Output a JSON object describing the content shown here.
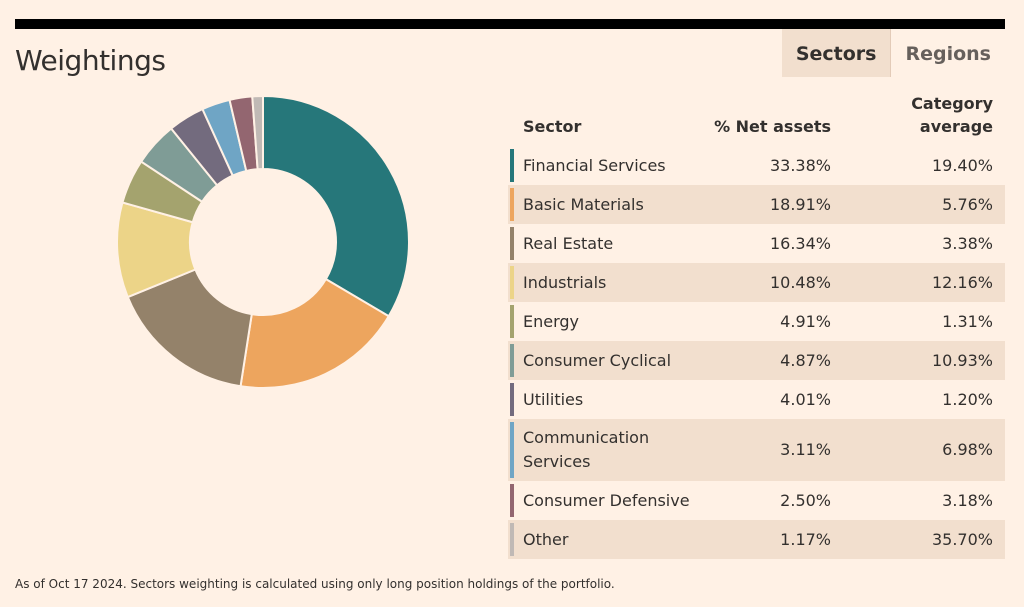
{
  "title": "Weightings",
  "tabs": {
    "sectors": "Sectors",
    "regions": "Regions"
  },
  "table": {
    "headers": {
      "sector": "Sector",
      "net": "% Net assets",
      "cat": "Category average"
    }
  },
  "footnote": "As of Oct 17 2024. Sectors weighting is calculated using only long position holdings of the portfolio.",
  "chart_data": {
    "type": "pie",
    "title": "Weightings",
    "categories": [
      "Financial Services",
      "Basic Materials",
      "Real Estate",
      "Industrials",
      "Energy",
      "Consumer Cyclical",
      "Utilities",
      "Communication Services",
      "Consumer Defensive",
      "Other"
    ],
    "values": [
      33.38,
      18.91,
      16.34,
      10.48,
      4.91,
      4.87,
      4.01,
      3.11,
      2.5,
      1.17
    ],
    "category_average": [
      19.4,
      5.76,
      3.38,
      12.16,
      1.31,
      10.93,
      1.2,
      6.98,
      3.18,
      35.7
    ],
    "net_labels": [
      "33.38%",
      "18.91%",
      "16.34%",
      "10.48%",
      "4.91%",
      "4.87%",
      "4.01%",
      "3.11%",
      "2.50%",
      "1.17%"
    ],
    "cat_labels": [
      "19.40%",
      "5.76%",
      "3.38%",
      "12.16%",
      "1.31%",
      "10.93%",
      "1.20%",
      "6.98%",
      "3.18%",
      "35.70%"
    ],
    "colors": [
      "#26777a",
      "#eda55e",
      "#94826a",
      "#ecd488",
      "#a4a36e",
      "#7f9c96",
      "#736b7e",
      "#6fa5c5",
      "#936670",
      "#c0b9b5"
    ]
  }
}
